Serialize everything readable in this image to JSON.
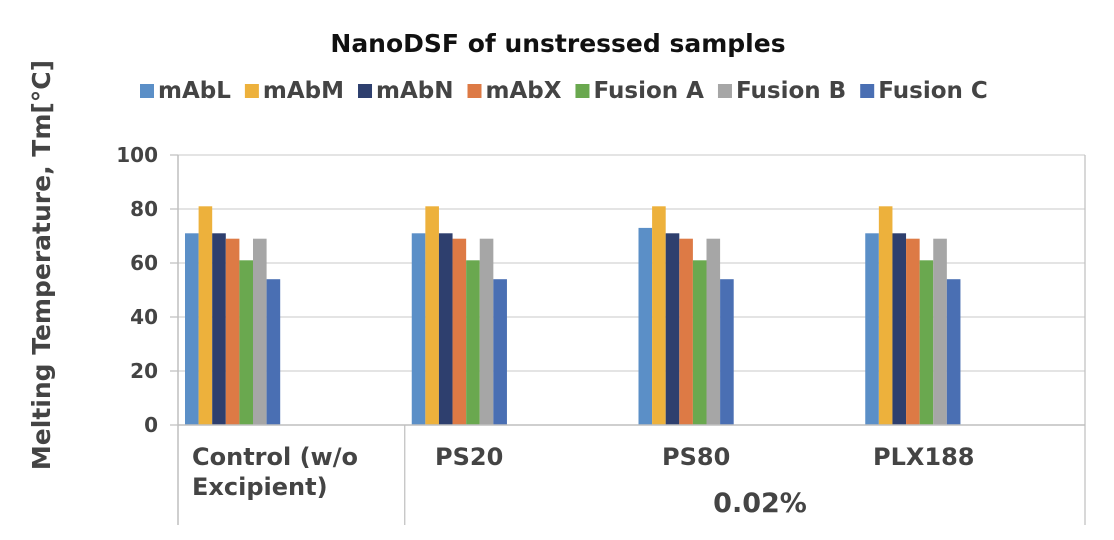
{
  "chart_data": {
    "type": "bar",
    "title": "NanoDSF of unstressed samples",
    "ylabel": "Melting Temperature, Tm[°C]",
    "xlabel": "",
    "ylim": [
      0,
      100
    ],
    "yticks": [
      0,
      20,
      40,
      60,
      80,
      100
    ],
    "grid": true,
    "legend_position": "top",
    "categories": [
      "Control (w/o Excipient)",
      "PS20",
      "PS80",
      "PLX188"
    ],
    "category_label_lines": [
      [
        "Control (w/o",
        "Excipient)"
      ],
      [
        "PS20"
      ],
      [
        "PS80"
      ],
      [
        "PLX188"
      ]
    ],
    "group_label": "0.02%",
    "series": [
      {
        "name": "mAbL",
        "color": "#5B8FC7",
        "values": [
          71,
          71,
          73,
          71
        ]
      },
      {
        "name": "mAbM",
        "color": "#EDB13C",
        "values": [
          81,
          81,
          81,
          81
        ]
      },
      {
        "name": "mAbN",
        "color": "#2E3F6E",
        "values": [
          71,
          71,
          71,
          71
        ]
      },
      {
        "name": "mAbX",
        "color": "#DD7A45",
        "values": [
          69,
          69,
          69,
          69
        ]
      },
      {
        "name": "Fusion A",
        "color": "#6AA84F",
        "values": [
          61,
          61,
          61,
          61
        ]
      },
      {
        "name": "Fusion B",
        "color": "#A6A6A6",
        "values": [
          69,
          69,
          69,
          69
        ]
      },
      {
        "name": "Fusion C",
        "color": "#4A6FB3",
        "values": [
          54,
          54,
          54,
          54
        ]
      }
    ]
  }
}
